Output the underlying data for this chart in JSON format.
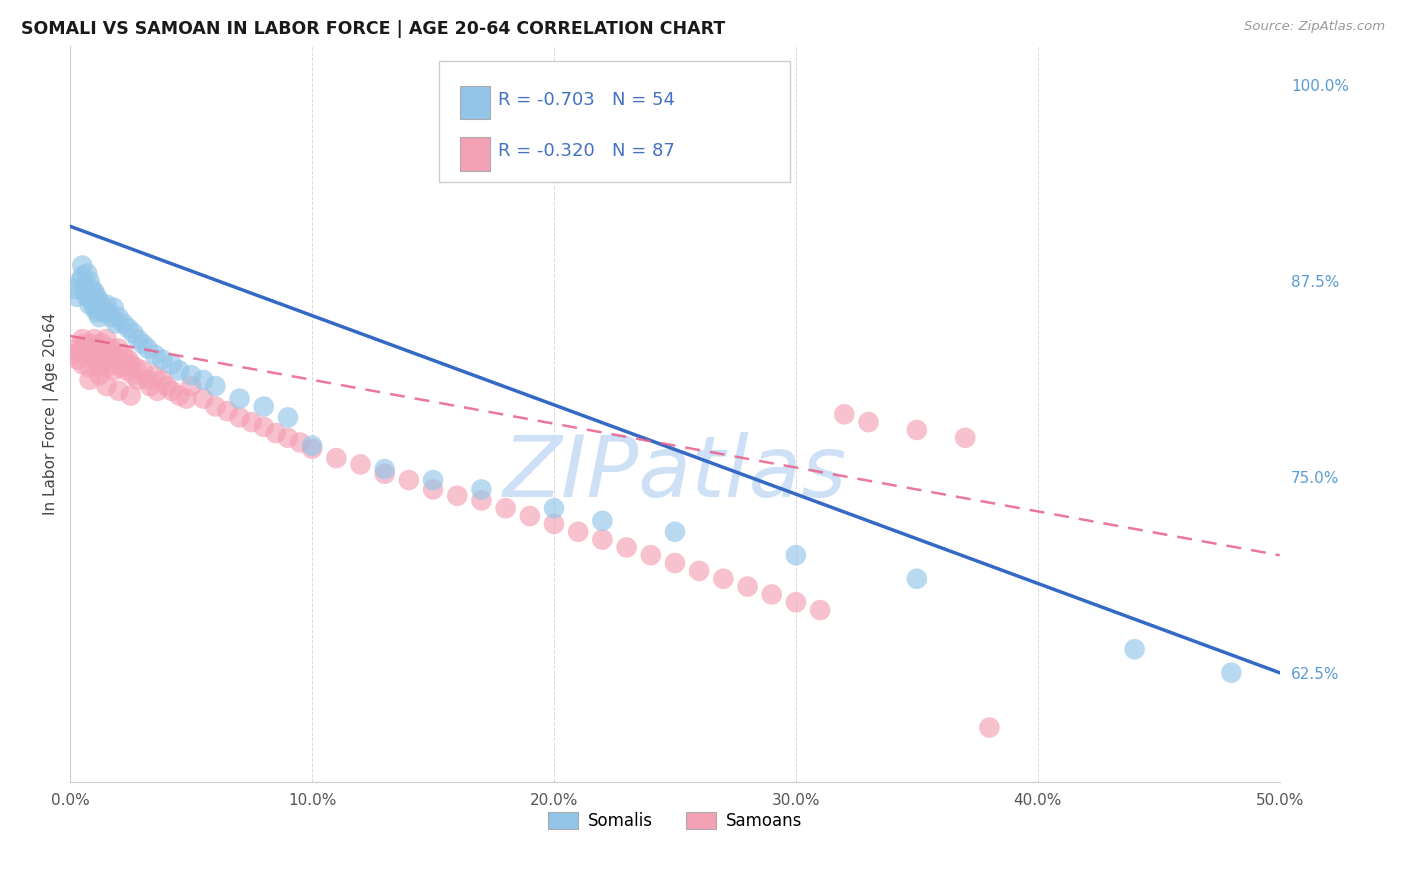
{
  "title": "SOMALI VS SAMOAN IN LABOR FORCE | AGE 20-64 CORRELATION CHART",
  "source": "Source: ZipAtlas.com",
  "ylabel": "In Labor Force | Age 20-64",
  "xlim": [
    0.0,
    0.5
  ],
  "ylim": [
    0.555,
    1.025
  ],
  "xticks": [
    0.0,
    0.1,
    0.2,
    0.3,
    0.4,
    0.5
  ],
  "xticklabels": [
    "0.0%",
    "10.0%",
    "20.0%",
    "30.0%",
    "40.0%",
    "50.0%"
  ],
  "yticks_right": [
    0.625,
    0.75,
    0.875,
    1.0
  ],
  "yticklabels_right": [
    "62.5%",
    "75.0%",
    "87.5%",
    "100.0%"
  ],
  "right_tick_color": "#5b9bd5",
  "legend_r_somali": "R = -0.703",
  "legend_n_somali": "N = 54",
  "legend_r_samoan": "R = -0.320",
  "legend_n_samoan": "N = 87",
  "somali_color": "#92C5E8",
  "samoan_color": "#F4A0B5",
  "somali_line_color": "#3469C4",
  "samoan_line_color": "#E8608A",
  "watermark_text": "ZIPatlas",
  "watermark_color": "#cde0f5",
  "background_color": "#ffffff",
  "grid_color": "#d0d0d0",
  "somali_x": [
    0.002,
    0.003,
    0.004,
    0.005,
    0.005,
    0.006,
    0.006,
    0.007,
    0.007,
    0.008,
    0.008,
    0.009,
    0.009,
    0.01,
    0.01,
    0.011,
    0.011,
    0.012,
    0.012,
    0.013,
    0.014,
    0.015,
    0.016,
    0.017,
    0.018,
    0.019,
    0.02,
    0.022,
    0.024,
    0.026,
    0.028,
    0.03,
    0.032,
    0.035,
    0.038,
    0.042,
    0.045,
    0.05,
    0.055,
    0.06,
    0.07,
    0.08,
    0.09,
    0.1,
    0.13,
    0.15,
    0.17,
    0.2,
    0.22,
    0.25,
    0.3,
    0.35,
    0.44,
    0.48
  ],
  "somali_y": [
    0.87,
    0.865,
    0.875,
    0.885,
    0.878,
    0.872,
    0.868,
    0.88,
    0.865,
    0.875,
    0.86,
    0.87,
    0.862,
    0.868,
    0.858,
    0.865,
    0.855,
    0.862,
    0.852,
    0.858,
    0.855,
    0.86,
    0.855,
    0.852,
    0.858,
    0.848,
    0.852,
    0.848,
    0.845,
    0.842,
    0.838,
    0.835,
    0.832,
    0.828,
    0.825,
    0.822,
    0.818,
    0.815,
    0.812,
    0.808,
    0.8,
    0.795,
    0.788,
    0.77,
    0.755,
    0.748,
    0.742,
    0.73,
    0.722,
    0.715,
    0.7,
    0.685,
    0.64,
    0.625
  ],
  "samoan_x": [
    0.001,
    0.002,
    0.003,
    0.004,
    0.005,
    0.005,
    0.006,
    0.007,
    0.008,
    0.008,
    0.009,
    0.01,
    0.01,
    0.011,
    0.012,
    0.012,
    0.013,
    0.014,
    0.015,
    0.015,
    0.016,
    0.017,
    0.018,
    0.018,
    0.019,
    0.02,
    0.021,
    0.022,
    0.023,
    0.024,
    0.025,
    0.026,
    0.027,
    0.028,
    0.03,
    0.032,
    0.033,
    0.035,
    0.036,
    0.038,
    0.04,
    0.042,
    0.045,
    0.048,
    0.05,
    0.055,
    0.06,
    0.065,
    0.07,
    0.075,
    0.08,
    0.085,
    0.09,
    0.095,
    0.1,
    0.11,
    0.12,
    0.13,
    0.14,
    0.15,
    0.16,
    0.17,
    0.18,
    0.19,
    0.2,
    0.21,
    0.22,
    0.23,
    0.24,
    0.25,
    0.26,
    0.27,
    0.28,
    0.29,
    0.3,
    0.31,
    0.32,
    0.33,
    0.35,
    0.37,
    0.008,
    0.01,
    0.012,
    0.015,
    0.02,
    0.025,
    0.38
  ],
  "samoan_y": [
    0.828,
    0.832,
    0.825,
    0.83,
    0.838,
    0.822,
    0.835,
    0.828,
    0.832,
    0.82,
    0.835,
    0.838,
    0.825,
    0.832,
    0.828,
    0.82,
    0.835,
    0.825,
    0.838,
    0.82,
    0.825,
    0.832,
    0.828,
    0.818,
    0.825,
    0.832,
    0.82,
    0.828,
    0.818,
    0.825,
    0.822,
    0.815,
    0.82,
    0.812,
    0.818,
    0.812,
    0.808,
    0.815,
    0.805,
    0.812,
    0.808,
    0.805,
    0.802,
    0.8,
    0.808,
    0.8,
    0.795,
    0.792,
    0.788,
    0.785,
    0.782,
    0.778,
    0.775,
    0.772,
    0.768,
    0.762,
    0.758,
    0.752,
    0.748,
    0.742,
    0.738,
    0.735,
    0.73,
    0.725,
    0.72,
    0.715,
    0.71,
    0.705,
    0.7,
    0.695,
    0.69,
    0.685,
    0.68,
    0.675,
    0.67,
    0.665,
    0.79,
    0.785,
    0.78,
    0.775,
    0.812,
    0.828,
    0.815,
    0.808,
    0.805,
    0.802,
    0.59
  ],
  "somali_line_x0": 0.0,
  "somali_line_y0": 0.91,
  "somali_line_x1": 0.5,
  "somali_line_y1": 0.625,
  "samoan_line_x0": 0.0,
  "samoan_line_y0": 0.84,
  "samoan_line_x1": 0.5,
  "samoan_line_y1": 0.7
}
